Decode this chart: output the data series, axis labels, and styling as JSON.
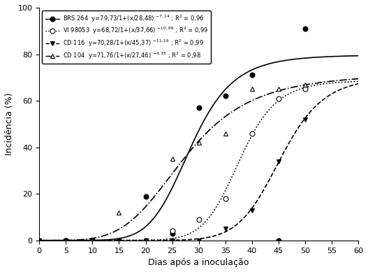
{
  "title": "",
  "xlabel": "Dias após a inoculação",
  "ylabel": "Incidência (%)",
  "xlim": [
    0,
    60
  ],
  "ylim": [
    0,
    100
  ],
  "xticks": [
    0,
    5,
    10,
    15,
    20,
    25,
    30,
    35,
    40,
    45,
    50,
    55,
    60
  ],
  "yticks": [
    0,
    20,
    40,
    60,
    80,
    100
  ],
  "series": [
    {
      "name": "BRS 264",
      "label": "BRS 264  y=79,73/1+(x/28,48) $^{-7,14}$ ; R² = 0,96",
      "equation": {
        "ymax": 79.73,
        "xmid": 28.48,
        "slope": -7.14
      },
      "marker": "o",
      "marker_fill": "black",
      "linestyle": "-",
      "color": "black",
      "data_x": [
        0,
        5,
        10,
        15,
        20,
        25,
        30,
        35,
        40,
        45,
        50
      ],
      "data_y": [
        0,
        0,
        0,
        0,
        19,
        3,
        57,
        62,
        71,
        0,
        91
      ]
    },
    {
      "name": "VI 98053",
      "label": "VI 98053  y=68,72/1+(x/37,66) $^{-10,86}$ ; R² = 0,99",
      "equation": {
        "ymax": 68.72,
        "xmid": 37.66,
        "slope": -10.86
      },
      "marker": "o",
      "marker_fill": "white",
      "linestyle": ":",
      "color": "black",
      "data_x": [
        0,
        5,
        10,
        15,
        20,
        25,
        30,
        35,
        40,
        45,
        50
      ],
      "data_y": [
        0,
        0,
        0,
        0,
        0,
        4,
        9,
        18,
        46,
        61,
        65
      ]
    },
    {
      "name": "CD 116",
      "label": "CD 116  y=70,28/1+(x/45,37) $^{-11,16}$ ; R² = 0,99",
      "equation": {
        "ymax": 70.28,
        "xmid": 45.37,
        "slope": -11.16
      },
      "marker": "v",
      "marker_fill": "black",
      "linestyle": "--",
      "color": "black",
      "data_x": [
        0,
        5,
        10,
        15,
        20,
        25,
        30,
        35,
        40,
        45,
        50
      ],
      "data_y": [
        0,
        0,
        0,
        0,
        0,
        0,
        0,
        5,
        13,
        34,
        52
      ]
    },
    {
      "name": "CD 104",
      "label": "CD 104  y=71,76/1+(x/27,46) $^{-4,35}$ ; R² = 0,98",
      "equation": {
        "ymax": 71.76,
        "xmid": 27.46,
        "slope": -4.35
      },
      "marker": "^",
      "marker_fill": "white",
      "linestyle": "-.",
      "color": "black",
      "data_x": [
        0,
        5,
        10,
        15,
        20,
        25,
        30,
        35,
        40,
        45,
        50
      ],
      "data_y": [
        0,
        0,
        0,
        12,
        0,
        35,
        42,
        46,
        65,
        65,
        67
      ]
    }
  ],
  "legend_labels": [
    "BRS 264  y=79,73/1+(x/28,48) $^{-7,14}$ ; R² = 0,96",
    "VI 98053  y=68,72/1+(x/37,66) $^{-10,86}$ ; R² = 0,99",
    "CD 116  y=70,28/1+(x/45,37) $^{-11,16}$ ; R² = 0,99",
    "CD 104  y=71,76/1+(x/27,46) $^{-4,35}$ ; R² = 0,98"
  ]
}
